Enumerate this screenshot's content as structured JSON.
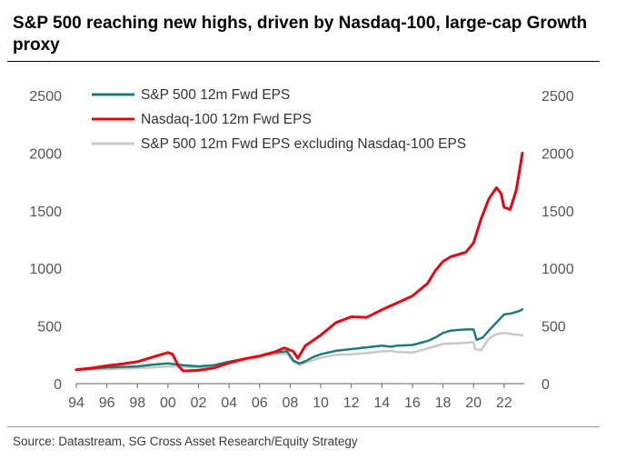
{
  "header": {
    "title": "S&P 500 reaching new highs, driven by Nasdaq-100, large-cap Growth proxy"
  },
  "footer": {
    "source": "Source: Datastream, SG Cross Asset Research/Equity Strategy"
  },
  "chart_data": {
    "type": "line",
    "title": "S&P 500 reaching new highs, driven by Nasdaq-100, large-cap Growth proxy",
    "xlabel": "",
    "ylabel": "",
    "xlim": [
      1994,
      2023.2
    ],
    "ylim": [
      0,
      2500
    ],
    "x_ticks": [
      "94",
      "96",
      "98",
      "00",
      "02",
      "04",
      "06",
      "08",
      "10",
      "12",
      "14",
      "16",
      "18",
      "20",
      "22"
    ],
    "y_ticks": [
      "0",
      "500",
      "1000",
      "1500",
      "2000",
      "2500"
    ],
    "y_ticks_right": [
      "0",
      "500",
      "1000",
      "1500",
      "2000",
      "2500"
    ],
    "grid": false,
    "legend_position": "top-left",
    "series": [
      {
        "name": "S&P 500 12m Fwd EPS",
        "color": "#1f7a78",
        "points": [
          [
            1994,
            120
          ],
          [
            1995,
            130
          ],
          [
            1996,
            140
          ],
          [
            1997,
            145
          ],
          [
            1998,
            150
          ],
          [
            1999,
            165
          ],
          [
            2000,
            175
          ],
          [
            2001,
            160
          ],
          [
            2002,
            150
          ],
          [
            2003,
            160
          ],
          [
            2004,
            190
          ],
          [
            2005,
            215
          ],
          [
            2006,
            240
          ],
          [
            2007,
            270
          ],
          [
            2007.8,
            280
          ],
          [
            2008.2,
            200
          ],
          [
            2008.6,
            175
          ],
          [
            2009,
            195
          ],
          [
            2009.5,
            230
          ],
          [
            2010,
            255
          ],
          [
            2011,
            285
          ],
          [
            2012,
            300
          ],
          [
            2013,
            315
          ],
          [
            2014,
            330
          ],
          [
            2014.6,
            320
          ],
          [
            2015,
            330
          ],
          [
            2016,
            335
          ],
          [
            2017,
            370
          ],
          [
            2017.5,
            400
          ],
          [
            2018,
            440
          ],
          [
            2018.5,
            460
          ],
          [
            2019,
            465
          ],
          [
            2019.5,
            470
          ],
          [
            2020,
            470
          ],
          [
            2020.2,
            380
          ],
          [
            2020.6,
            400
          ],
          [
            2021,
            460
          ],
          [
            2021.5,
            530
          ],
          [
            2022,
            600
          ],
          [
            2022.5,
            610
          ],
          [
            2023,
            630
          ],
          [
            2023.2,
            645
          ]
        ]
      },
      {
        "name": "Nasdaq-100 12m Fwd EPS",
        "color": "#e30613",
        "points": [
          [
            1994,
            120
          ],
          [
            1995,
            135
          ],
          [
            1996,
            155
          ],
          [
            1997,
            170
          ],
          [
            1998,
            190
          ],
          [
            1999,
            230
          ],
          [
            2000,
            270
          ],
          [
            2000.3,
            255
          ],
          [
            2000.7,
            150
          ],
          [
            2001,
            110
          ],
          [
            2002,
            115
          ],
          [
            2003,
            135
          ],
          [
            2004,
            180
          ],
          [
            2005,
            215
          ],
          [
            2006,
            240
          ],
          [
            2007,
            275
          ],
          [
            2007.6,
            310
          ],
          [
            2008.2,
            280
          ],
          [
            2008.5,
            220
          ],
          [
            2009,
            330
          ],
          [
            2010,
            420
          ],
          [
            2011,
            530
          ],
          [
            2012,
            580
          ],
          [
            2013,
            575
          ],
          [
            2014,
            640
          ],
          [
            2015,
            700
          ],
          [
            2016,
            760
          ],
          [
            2017,
            870
          ],
          [
            2017.5,
            980
          ],
          [
            2018,
            1060
          ],
          [
            2018.5,
            1100
          ],
          [
            2019,
            1120
          ],
          [
            2019.5,
            1140
          ],
          [
            2020,
            1220
          ],
          [
            2020.5,
            1430
          ],
          [
            2021,
            1600
          ],
          [
            2021.5,
            1700
          ],
          [
            2021.8,
            1650
          ],
          [
            2022,
            1530
          ],
          [
            2022.4,
            1510
          ],
          [
            2022.8,
            1680
          ],
          [
            2023.2,
            2000
          ]
        ]
      },
      {
        "name": "S&P 500 12m Fwd EPS excluding Nasdaq-100 EPS",
        "color": "#c8c8c8",
        "points": [
          [
            1994,
            115
          ],
          [
            1995,
            120
          ],
          [
            1996,
            125
          ],
          [
            1997,
            130
          ],
          [
            1998,
            135
          ],
          [
            1999,
            140
          ],
          [
            2000,
            150
          ],
          [
            2001,
            148
          ],
          [
            2002,
            140
          ],
          [
            2003,
            150
          ],
          [
            2004,
            175
          ],
          [
            2005,
            200
          ],
          [
            2006,
            230
          ],
          [
            2007,
            255
          ],
          [
            2007.8,
            260
          ],
          [
            2008.2,
            190
          ],
          [
            2008.6,
            160
          ],
          [
            2009,
            180
          ],
          [
            2010,
            225
          ],
          [
            2011,
            250
          ],
          [
            2012,
            255
          ],
          [
            2013,
            265
          ],
          [
            2014,
            280
          ],
          [
            2014.6,
            285
          ],
          [
            2015,
            275
          ],
          [
            2016,
            270
          ],
          [
            2017,
            305
          ],
          [
            2018,
            345
          ],
          [
            2019,
            350
          ],
          [
            2019.6,
            355
          ],
          [
            2020,
            360
          ],
          [
            2020.1,
            300
          ],
          [
            2020.5,
            290
          ],
          [
            2021,
            390
          ],
          [
            2021.5,
            430
          ],
          [
            2022,
            440
          ],
          [
            2022.5,
            430
          ],
          [
            2023.2,
            420
          ]
        ]
      }
    ]
  }
}
